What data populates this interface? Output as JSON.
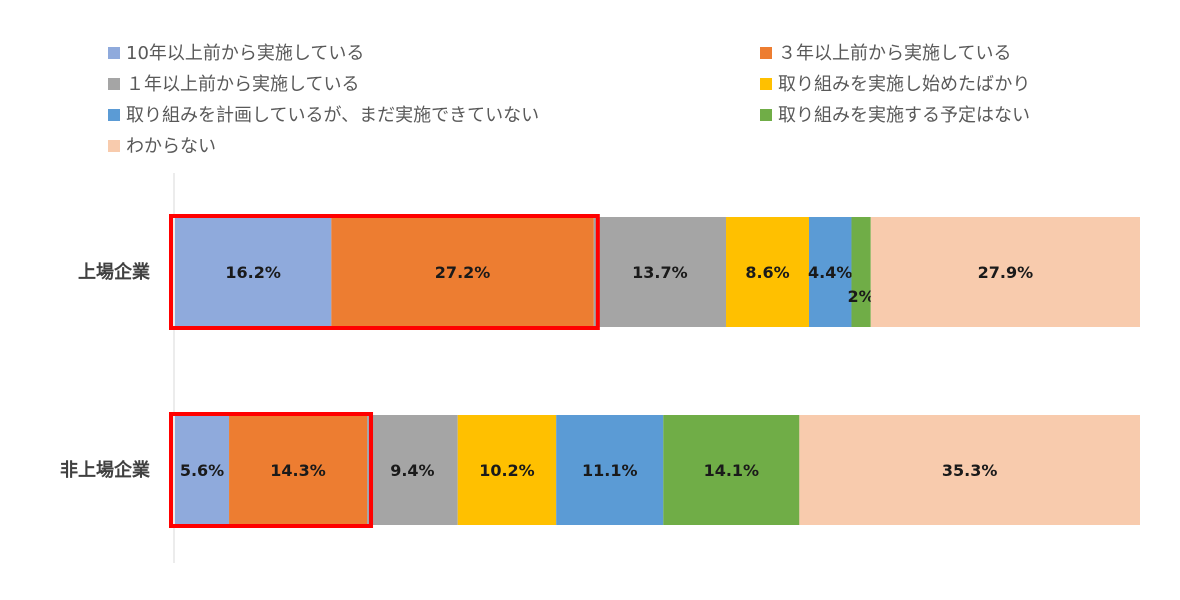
{
  "chart_data": {
    "type": "bar",
    "orientation": "horizontal",
    "stacked": "100%",
    "categories": [
      "上場企業",
      "非上場企業"
    ],
    "series": [
      {
        "name": "10年以上前から実施している",
        "color": "#8FAADC",
        "values": [
          16.2,
          5.6
        ]
      },
      {
        "name": "３年以上前から実施している",
        "color": "#ED7D31",
        "values": [
          27.2,
          14.3
        ]
      },
      {
        "name": "１年以上前から実施している",
        "color": "#A5A5A5",
        "values": [
          13.7,
          9.4
        ]
      },
      {
        "name": "取り組みを実施し始めたばかり",
        "color": "#FFC000",
        "values": [
          8.6,
          10.2
        ]
      },
      {
        "name": "取り組みを計画しているが、まだ実施できていない",
        "color": "#5B9BD5",
        "values": [
          4.4,
          11.1
        ]
      },
      {
        "name": "取り組みを実施する予定はない",
        "color": "#70AD47",
        "values": [
          2,
          14.1
        ]
      },
      {
        "name": "わからない",
        "color": "#F8CBAD",
        "values": [
          27.9,
          35.3
        ]
      }
    ],
    "value_labels": [
      [
        "16.2%",
        "27.2%",
        "13.7%",
        "8.6%",
        "4.4%",
        "2%",
        "27.9%"
      ],
      [
        "5.6%",
        "14.3%",
        "9.4%",
        "10.2%",
        "11.1%",
        "14.1%",
        "35.3%"
      ]
    ],
    "legend_placement": "top",
    "grid": false,
    "highlight": {
      "series_indices": [
        0,
        1
      ],
      "color": "#FF0000"
    }
  }
}
